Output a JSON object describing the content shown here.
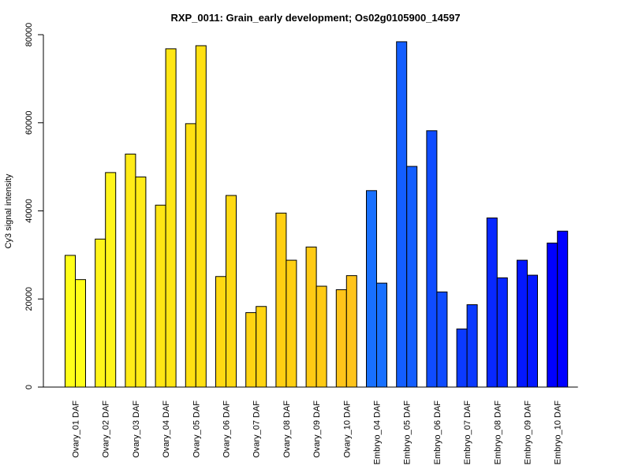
{
  "chart_data": {
    "type": "bar",
    "title": "RXP_0011: Grain_early development; Os02g0105900_14597",
    "xlabel": "",
    "ylabel": "Cy3 signal intensity",
    "ylim": [
      0,
      80000
    ],
    "yticks": [
      "0",
      "20000",
      "40000",
      "60000",
      "80000"
    ],
    "grid": false,
    "categories": [
      "Ovary_01 DAF",
      "Ovary_02 DAF",
      "Ovary_03 DAF",
      "Ovary_04 DAF",
      "Ovary_05 DAF",
      "Ovary_06 DAF",
      "Ovary_07 DAF",
      "Ovary_08 DAF",
      "Ovary_09 DAF",
      "Ovary_10 DAF",
      "Embryo_04 DAF",
      "Embryo_05 DAF",
      "Embryo_06 DAF",
      "Embryo_07 DAF",
      "Embryo_08 DAF",
      "Embryo_09 DAF",
      "Embryo_10 DAF"
    ],
    "values": [
      [
        29900,
        24400
      ],
      [
        33600,
        48700
      ],
      [
        52900,
        47700
      ],
      [
        41300,
        76800
      ],
      [
        59800,
        77500
      ],
      [
        25100,
        43500
      ],
      [
        16900,
        18300
      ],
      [
        39500,
        28800
      ],
      [
        31800,
        22900
      ],
      [
        22100,
        25300
      ],
      [
        44600,
        23600
      ],
      [
        78400,
        50100
      ],
      [
        58200,
        21600
      ],
      [
        13200,
        18700
      ],
      [
        38400,
        24800
      ],
      [
        28800,
        25400
      ],
      [
        32700,
        35400
      ]
    ],
    "colors": [
      "#FFFF19",
      "#FFF51A",
      "#FFEB17",
      "#FFE614",
      "#FFE012",
      "#FFD912",
      "#FFD412",
      "#FFCF12",
      "#FFCA14",
      "#FFC41A",
      "#1870FF",
      "#135EFF",
      "#0F4CFF",
      "#0B3AFF",
      "#0828FF",
      "#0418FF",
      "#0000FF"
    ]
  }
}
